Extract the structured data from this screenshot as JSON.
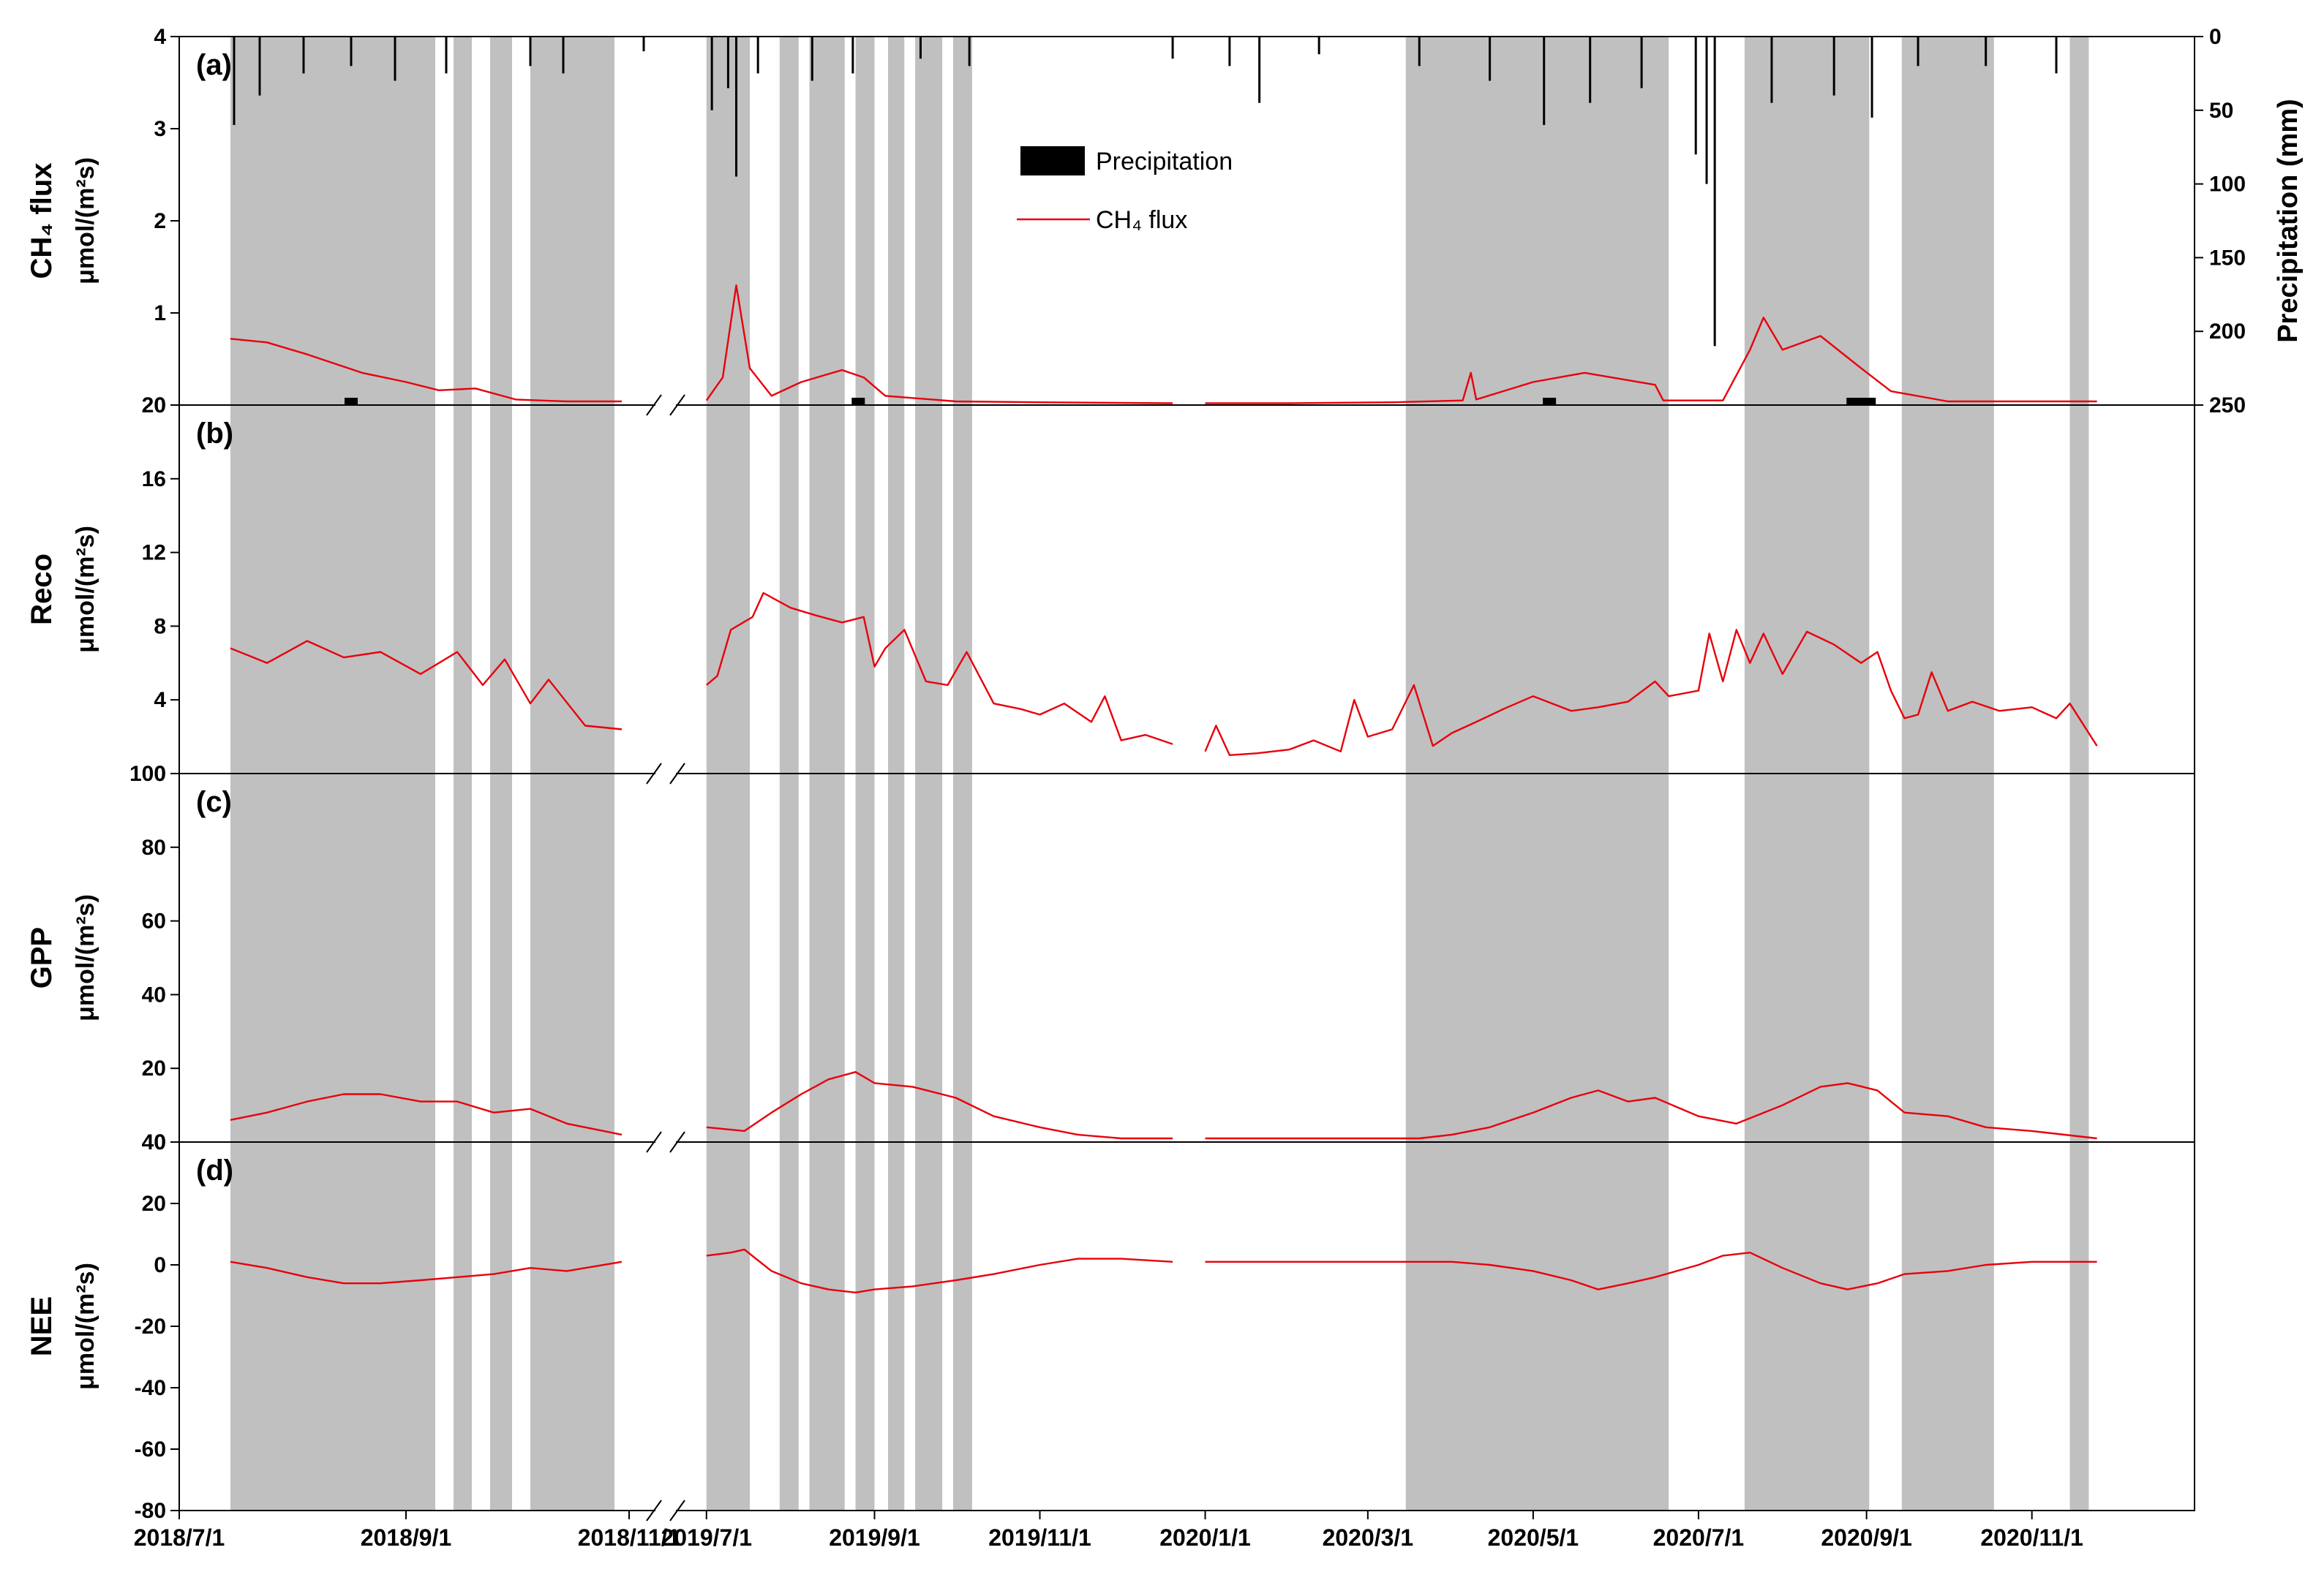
{
  "chart_data": [
    {
      "type": "line",
      "panel": "(a)",
      "ylabel_line1": "CH₄ flux",
      "ylabel_line2": "μmol/(m²s)",
      "ylim": [
        0,
        4
      ],
      "yticks": [
        "0",
        "1",
        "2",
        "3",
        "4"
      ],
      "y2label": "Precipitation (mm)",
      "y2lim": [
        250,
        0
      ],
      "y2ticks": [
        "0",
        "50",
        "100",
        "150",
        "200",
        "250"
      ],
      "legend": {
        "position": "top-center",
        "items": [
          "Precipitation",
          "CH₄ flux"
        ]
      },
      "series": [
        {
          "name": "CH₄ flux",
          "color": "#e8000b",
          "segments": [
            {
              "x": [
                "2018-07-15",
                "2018-07-25",
                "2018-08-05",
                "2018-08-20",
                "2018-09-01",
                "2018-09-10",
                "2018-09-20",
                "2018-10-01",
                "2018-10-15",
                "2018-10-30"
              ],
              "y": [
                0.72,
                0.68,
                0.55,
                0.35,
                0.25,
                0.16,
                0.18,
                0.06,
                0.04,
                0.04
              ]
            },
            {
              "x": [
                "2019-07-01",
                "2019-07-07",
                "2019-07-12",
                "2019-07-17",
                "2019-07-25",
                "2019-08-05",
                "2019-08-20",
                "2019-08-28",
                "2019-09-05",
                "2019-10-01",
                "2019-11-01",
                "2019-12-20"
              ],
              "y": [
                0.05,
                0.3,
                1.3,
                0.4,
                0.1,
                0.25,
                0.38,
                0.3,
                0.1,
                0.04,
                0.03,
                0.02
              ]
            },
            {
              "x": [
                "2020-01-01",
                "2020-02-01",
                "2020-03-10",
                "2020-04-05",
                "2020-04-08",
                "2020-04-10",
                "2020-05-01",
                "2020-05-20",
                "2020-06-15",
                "2020-06-18",
                "2020-07-10",
                "2020-07-20",
                "2020-07-25",
                "2020-08-01",
                "2020-08-15",
                "2020-08-30",
                "2020-09-10",
                "2020-10-01",
                "2020-11-01",
                "2020-11-25"
              ],
              "y": [
                0.02,
                0.02,
                0.03,
                0.05,
                0.35,
                0.06,
                0.25,
                0.35,
                0.22,
                0.05,
                0.05,
                0.6,
                0.95,
                0.6,
                0.75,
                0.4,
                0.15,
                0.04,
                0.04,
                0.04
              ]
            }
          ]
        }
      ],
      "precipitation_mm": {
        "x": [
          "2018-07-16",
          "2018-07-23",
          "2018-08-04",
          "2018-08-17",
          "2018-08-29",
          "2018-09-12",
          "2018-10-05",
          "2018-10-14",
          "2018-11-05",
          "2019-07-03",
          "2019-07-09",
          "2019-07-12",
          "2019-07-20",
          "2019-08-09",
          "2019-08-24",
          "2019-09-18",
          "2019-10-06",
          "2019-12-20",
          "2020-01-10",
          "2020-01-21",
          "2020-02-12",
          "2020-03-20",
          "2020-04-15",
          "2020-05-05",
          "2020-05-22",
          "2020-06-10",
          "2020-06-30",
          "2020-07-04",
          "2020-07-07",
          "2020-07-28",
          "2020-08-20",
          "2020-09-03",
          "2020-09-20",
          "2020-10-15",
          "2020-11-10"
        ],
        "y": [
          60,
          40,
          25,
          20,
          30,
          25,
          20,
          25,
          10,
          50,
          35,
          95,
          25,
          30,
          25,
          15,
          20,
          15,
          20,
          45,
          12,
          20,
          30,
          60,
          45,
          35,
          80,
          100,
          210,
          45,
          40,
          55,
          20,
          20,
          25
        ]
      }
    },
    {
      "type": "line",
      "panel": "(b)",
      "ylabel_line1": "Reco",
      "ylabel_line2": "μmol/(m²s)",
      "ylim": [
        0,
        20
      ],
      "yticks": [
        "0",
        "4",
        "8",
        "12",
        "16",
        "20"
      ],
      "series": [
        {
          "name": "Reco",
          "color": "#e8000b",
          "segments": [
            {
              "x": [
                "2018-07-15",
                "2018-07-25",
                "2018-08-05",
                "2018-08-15",
                "2018-08-25",
                "2018-09-05",
                "2018-09-15",
                "2018-09-22",
                "2018-09-28",
                "2018-10-05",
                "2018-10-10",
                "2018-10-20",
                "2018-10-30"
              ],
              "y": [
                6.8,
                6.0,
                7.2,
                6.3,
                6.6,
                5.4,
                6.6,
                4.8,
                6.2,
                3.8,
                5.1,
                2.6,
                2.4
              ]
            },
            {
              "x": [
                "2019-07-01",
                "2019-07-05",
                "2019-07-10",
                "2019-07-18",
                "2019-07-22",
                "2019-08-01",
                "2019-08-10",
                "2019-08-20",
                "2019-08-28",
                "2019-09-01",
                "2019-09-05",
                "2019-09-12",
                "2019-09-20",
                "2019-09-28",
                "2019-10-05",
                "2019-10-15",
                "2019-10-25",
                "2019-11-01",
                "2019-11-10",
                "2019-11-20",
                "2019-11-25",
                "2019-12-01",
                "2019-12-10",
                "2019-12-20"
              ],
              "y": [
                4.8,
                5.3,
                7.8,
                8.5,
                9.8,
                9.0,
                8.6,
                8.2,
                8.5,
                5.8,
                6.8,
                7.8,
                5.0,
                4.8,
                6.6,
                3.8,
                3.5,
                3.2,
                3.8,
                2.8,
                4.2,
                1.8,
                2.1,
                1.6
              ]
            },
            {
              "x": [
                "2020-01-01",
                "2020-01-05",
                "2020-01-10",
                "2020-01-20",
                "2020-02-01",
                "2020-02-10",
                "2020-02-20",
                "2020-02-25",
                "2020-03-01",
                "2020-03-10",
                "2020-03-18",
                "2020-03-25",
                "2020-04-01",
                "2020-04-10",
                "2020-04-20",
                "2020-05-01",
                "2020-05-15",
                "2020-05-25",
                "2020-06-05",
                "2020-06-15",
                "2020-06-20",
                "2020-07-01",
                "2020-07-05",
                "2020-07-10",
                "2020-07-15",
                "2020-07-20",
                "2020-07-25",
                "2020-08-01",
                "2020-08-10",
                "2020-08-20",
                "2020-08-30",
                "2020-09-05",
                "2020-09-10",
                "2020-09-15",
                "2020-09-20",
                "2020-09-25",
                "2020-10-01",
                "2020-10-10",
                "2020-10-20",
                "2020-11-01",
                "2020-11-10",
                "2020-11-15",
                "2020-11-25"
              ],
              "y": [
                1.2,
                2.6,
                1.0,
                1.1,
                1.3,
                1.8,
                1.2,
                4.0,
                2.0,
                2.4,
                4.8,
                1.5,
                2.2,
                2.8,
                3.5,
                4.2,
                3.4,
                3.6,
                3.9,
                5.0,
                4.2,
                4.5,
                7.6,
                5.0,
                7.8,
                6.0,
                7.6,
                5.4,
                7.7,
                7.0,
                6.0,
                6.6,
                4.5,
                3.0,
                3.2,
                5.5,
                3.4,
                3.9,
                3.4,
                3.6,
                3.0,
                3.8,
                1.5
              ]
            }
          ]
        }
      ]
    },
    {
      "type": "line",
      "panel": "(c)",
      "ylabel_line1": "GPP",
      "ylabel_line2": "μmol/(m²s)",
      "ylim": [
        0,
        100
      ],
      "yticks": [
        "0",
        "20",
        "40",
        "60",
        "80",
        "100"
      ],
      "series": [
        {
          "name": "GPP",
          "color": "#e8000b",
          "segments": [
            {
              "x": [
                "2018-07-15",
                "2018-07-25",
                "2018-08-05",
                "2018-08-15",
                "2018-08-25",
                "2018-09-05",
                "2018-09-15",
                "2018-09-25",
                "2018-10-05",
                "2018-10-15",
                "2018-10-30"
              ],
              "y": [
                6,
                8,
                11,
                13,
                13,
                11,
                11,
                8,
                9,
                5,
                2
              ]
            },
            {
              "x": [
                "2019-07-01",
                "2019-07-15",
                "2019-07-25",
                "2019-08-05",
                "2019-08-15",
                "2019-08-25",
                "2019-09-01",
                "2019-09-15",
                "2019-10-01",
                "2019-10-15",
                "2019-11-01",
                "2019-11-15",
                "2019-12-01",
                "2019-12-20"
              ],
              "y": [
                4,
                3,
                8,
                13,
                17,
                19,
                16,
                15,
                12,
                7,
                4,
                2,
                1,
                1
              ]
            },
            {
              "x": [
                "2020-01-01",
                "2020-02-01",
                "2020-03-01",
                "2020-03-20",
                "2020-04-01",
                "2020-04-15",
                "2020-05-01",
                "2020-05-15",
                "2020-05-25",
                "2020-06-05",
                "2020-06-15",
                "2020-07-01",
                "2020-07-15",
                "2020-08-01",
                "2020-08-15",
                "2020-08-25",
                "2020-09-05",
                "2020-09-15",
                "2020-10-01",
                "2020-10-15",
                "2020-11-01",
                "2020-11-25"
              ],
              "y": [
                1,
                1,
                1,
                1,
                2,
                4,
                8,
                12,
                14,
                11,
                12,
                7,
                5,
                10,
                15,
                16,
                14,
                8,
                7,
                4,
                3,
                1
              ]
            }
          ]
        }
      ]
    },
    {
      "type": "line",
      "panel": "(d)",
      "ylabel_line1": "NEE",
      "ylabel_line2": "μmol/(m²s)",
      "ylim": [
        -80,
        40
      ],
      "yticks": [
        "-80",
        "-60",
        "-40",
        "-20",
        "0",
        "20",
        "40"
      ],
      "xlabel": "",
      "xticks": [
        "2018/7/1",
        "2018/9/1",
        "2018/11/1",
        "2019/7/1",
        "2019/9/1",
        "2019/11/1",
        "2020/1/1",
        "2020/3/1",
        "2020/5/1",
        "2020/7/1",
        "2020/9/1",
        "2020/11/1"
      ],
      "series": [
        {
          "name": "NEE",
          "color": "#e8000b",
          "segments": [
            {
              "x": [
                "2018-07-15",
                "2018-07-25",
                "2018-08-05",
                "2018-08-15",
                "2018-08-25",
                "2018-09-05",
                "2018-09-15",
                "2018-09-25",
                "2018-10-05",
                "2018-10-15",
                "2018-10-30"
              ],
              "y": [
                1,
                -1,
                -4,
                -6,
                -6,
                -5,
                -4,
                -3,
                -1,
                -2,
                1
              ]
            },
            {
              "x": [
                "2019-07-01",
                "2019-07-10",
                "2019-07-15",
                "2019-07-25",
                "2019-08-05",
                "2019-08-15",
                "2019-08-25",
                "2019-09-01",
                "2019-09-15",
                "2019-10-01",
                "2019-10-15",
                "2019-11-01",
                "2019-11-15",
                "2019-12-01",
                "2019-12-20"
              ],
              "y": [
                3,
                4,
                5,
                -2,
                -6,
                -8,
                -9,
                -8,
                -7,
                -5,
                -3,
                0,
                2,
                2,
                1
              ]
            },
            {
              "x": [
                "2020-01-01",
                "2020-02-01",
                "2020-03-01",
                "2020-04-01",
                "2020-04-15",
                "2020-05-01",
                "2020-05-15",
                "2020-05-25",
                "2020-06-05",
                "2020-06-15",
                "2020-07-01",
                "2020-07-10",
                "2020-07-20",
                "2020-08-01",
                "2020-08-15",
                "2020-08-25",
                "2020-09-05",
                "2020-09-15",
                "2020-10-01",
                "2020-10-15",
                "2020-11-01",
                "2020-11-25"
              ],
              "y": [
                1,
                1,
                1,
                1,
                0,
                -2,
                -5,
                -8,
                -6,
                -4,
                0,
                3,
                4,
                -1,
                -6,
                -8,
                -6,
                -3,
                -2,
                0,
                1,
                1
              ]
            }
          ]
        }
      ]
    }
  ],
  "shading": {
    "color": "#c0c0c0",
    "periods": [
      [
        "2018-07-15",
        "2018-09-09"
      ],
      [
        "2018-09-14",
        "2018-09-19"
      ],
      [
        "2018-09-24",
        "2018-09-30"
      ],
      [
        "2018-10-05",
        "2018-10-28"
      ],
      [
        "2019-07-01",
        "2019-07-17"
      ],
      [
        "2019-07-28",
        "2019-08-04"
      ],
      [
        "2019-08-08",
        "2019-08-21"
      ],
      [
        "2019-08-25",
        "2019-09-01"
      ],
      [
        "2019-09-06",
        "2019-09-12"
      ],
      [
        "2019-09-16",
        "2019-09-26"
      ],
      [
        "2019-09-30",
        "2019-10-07"
      ],
      [
        "2020-03-15",
        "2020-06-20"
      ],
      [
        "2020-07-18",
        "2020-09-02"
      ],
      [
        "2020-09-14",
        "2020-10-18"
      ],
      [
        "2020-11-15",
        "2020-11-22"
      ]
    ]
  },
  "axis_break": {
    "after": "2018-11-08",
    "resume": "2019-06-20"
  }
}
